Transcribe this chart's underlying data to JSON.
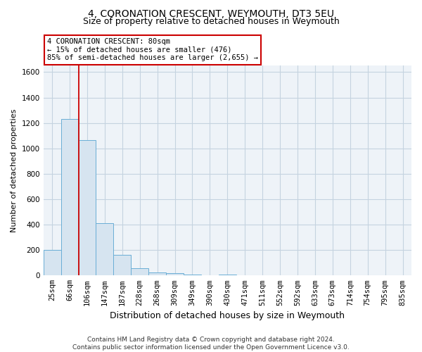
{
  "title": "4, CORONATION CRESCENT, WEYMOUTH, DT3 5EU",
  "subtitle": "Size of property relative to detached houses in Weymouth",
  "xlabel": "Distribution of detached houses by size in Weymouth",
  "ylabel": "Number of detached properties",
  "categories": [
    "25sqm",
    "66sqm",
    "106sqm",
    "147sqm",
    "187sqm",
    "228sqm",
    "268sqm",
    "309sqm",
    "349sqm",
    "390sqm",
    "430sqm",
    "471sqm",
    "511sqm",
    "552sqm",
    "592sqm",
    "633sqm",
    "673sqm",
    "714sqm",
    "754sqm",
    "795sqm",
    "835sqm"
  ],
  "values": [
    200,
    1230,
    1065,
    410,
    160,
    55,
    25,
    17,
    10,
    0,
    10,
    0,
    0,
    0,
    0,
    0,
    0,
    0,
    0,
    0,
    0
  ],
  "bar_color": "#d6e4f0",
  "bar_edge_color": "#6aaed6",
  "property_line_x": 1.5,
  "annotation_title": "4 CORONATION CRESCENT: 80sqm",
  "annotation_line1": "← 15% of detached houses are smaller (476)",
  "annotation_line2": "85% of semi-detached houses are larger (2,655) →",
  "ylim": [
    0,
    1650
  ],
  "yticks": [
    0,
    200,
    400,
    600,
    800,
    1000,
    1200,
    1400,
    1600
  ],
  "footer1": "Contains HM Land Registry data © Crown copyright and database right 2024.",
  "footer2": "Contains public sector information licensed under the Open Government Licence v3.0.",
  "bg_color": "#ffffff",
  "plot_bg_color": "#eef3f8",
  "grid_color": "#c5d3e0",
  "annotation_box_color": "#cc0000",
  "title_fontsize": 10,
  "subtitle_fontsize": 9,
  "ylabel_fontsize": 8,
  "xlabel_fontsize": 9,
  "tick_fontsize": 7.5,
  "footer_fontsize": 6.5
}
